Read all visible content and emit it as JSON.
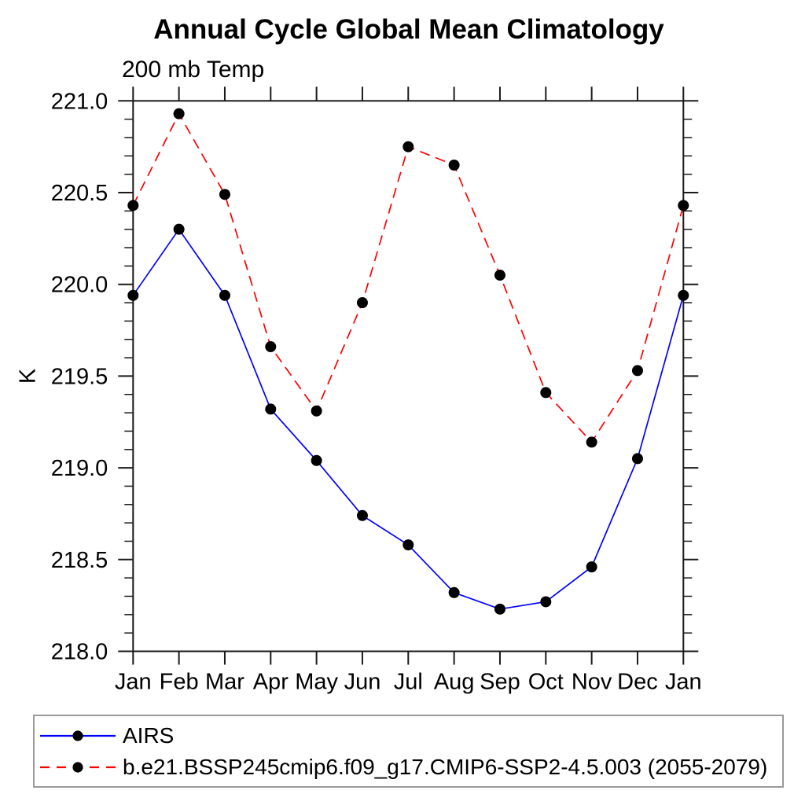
{
  "chart_data": {
    "type": "line",
    "title": "Annual Cycle Global Mean Climatology",
    "subtitle": "200 mb Temp",
    "xlabel": "",
    "ylabel": "K",
    "categories": [
      "Jan",
      "Feb",
      "Mar",
      "Apr",
      "May",
      "Jun",
      "Jul",
      "Aug",
      "Sep",
      "Oct",
      "Nov",
      "Dec",
      "Jan"
    ],
    "ylim": [
      218.0,
      221.0
    ],
    "ytick_major_step": 0.5,
    "ytick_minor_step": 0.1,
    "grid": false,
    "legend_position": "bottom-left-box",
    "marker": {
      "shape": "filled-circle",
      "color": "#000000",
      "radius": 7
    },
    "axis_color": "#1a1a1a",
    "series": [
      {
        "name": "AIRS",
        "color": "#0000ff",
        "style": "solid",
        "values": [
          219.94,
          220.3,
          219.94,
          219.32,
          219.04,
          218.74,
          218.58,
          218.32,
          218.23,
          218.27,
          218.46,
          219.05,
          219.94
        ]
      },
      {
        "name": "b.e21.BSSP245cmip6.f09_g17.CMIP6-SSP2-4.5.003 (2055-2079)",
        "color": "#ff0000",
        "style": "dashed",
        "values": [
          220.43,
          220.93,
          220.49,
          219.66,
          219.31,
          219.9,
          220.75,
          220.65,
          220.05,
          219.41,
          219.14,
          219.53,
          220.43
        ]
      }
    ]
  }
}
